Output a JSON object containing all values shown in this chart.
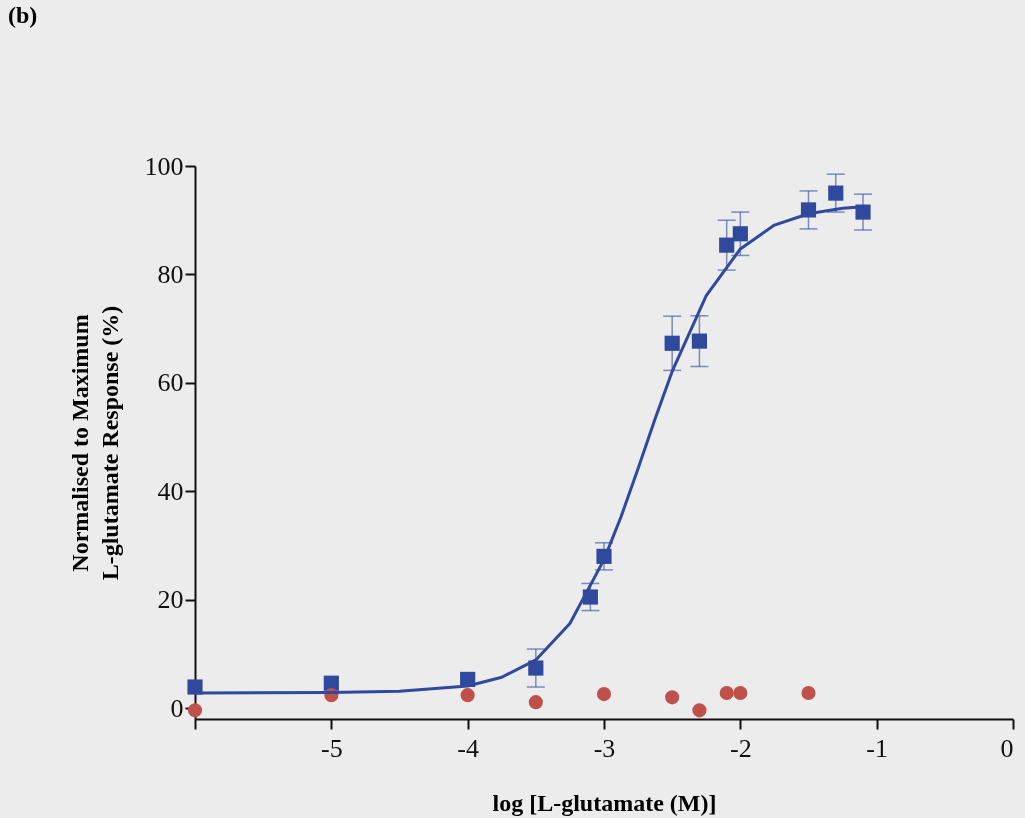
{
  "chart_data": {
    "type": "scatter",
    "title": "(b)",
    "xlabel": "log [L-glutamate (M)]",
    "ylabel": "Normalised to Maximum\nL-glutamate Response (%)",
    "xlim": [
      -6,
      0
    ],
    "xticks": [
      {
        "value": -6,
        "label": null
      },
      -5,
      -4,
      -3,
      -2,
      -1,
      0
    ],
    "ylim": [
      -2,
      100
    ],
    "yticks": [
      0,
      20,
      40,
      60,
      80,
      100
    ],
    "grid": false,
    "series": [
      {
        "marker": "square",
        "color": "#2f4a9c",
        "x": [
          -6,
          -5,
          -4,
          -3.5,
          -3.1,
          -3,
          -2.5,
          -2.3,
          -2.1,
          -2,
          -1.5,
          -1.3,
          -1.1
        ],
        "values": [
          3.9,
          4.6,
          5.3,
          7.4,
          20.5,
          28,
          67.3,
          67.7,
          85.4,
          87.5,
          91.9,
          95,
          91.5
        ],
        "errors": [
          null,
          null,
          null,
          3.5,
          2.5,
          2.5,
          5,
          4.7,
          4.6,
          4,
          3.5,
          3.5,
          3.3
        ]
      },
      {
        "marker": "circle",
        "color": "#c0504a",
        "x": [
          -6,
          -5,
          -4,
          -3.5,
          -3,
          -2.5,
          -2.3,
          -2.1,
          -2,
          -1.5
        ],
        "values": [
          -0.4,
          2.4,
          2.4,
          1.1,
          2.6,
          2,
          -0.4,
          2.8,
          2.8,
          2.8
        ]
      },
      {
        "type": "line",
        "marker": "none",
        "color": "#2f4a9c",
        "x": [
          -6,
          -5,
          -4.5,
          -4,
          -3.75,
          -3.5,
          -3.25,
          -3,
          -2.875,
          -2.75,
          -2.625,
          -2.5,
          -2.25,
          -2,
          -1.75,
          -1.5,
          -1.25,
          -1.1
        ],
        "values": [
          2.8,
          2.9,
          3.1,
          4.1,
          5.7,
          8.9,
          15.6,
          27.4,
          35.3,
          44.2,
          53.4,
          62.1,
          76.1,
          84.7,
          89.1,
          91.2,
          92.2,
          92.5
        ]
      }
    ]
  }
}
